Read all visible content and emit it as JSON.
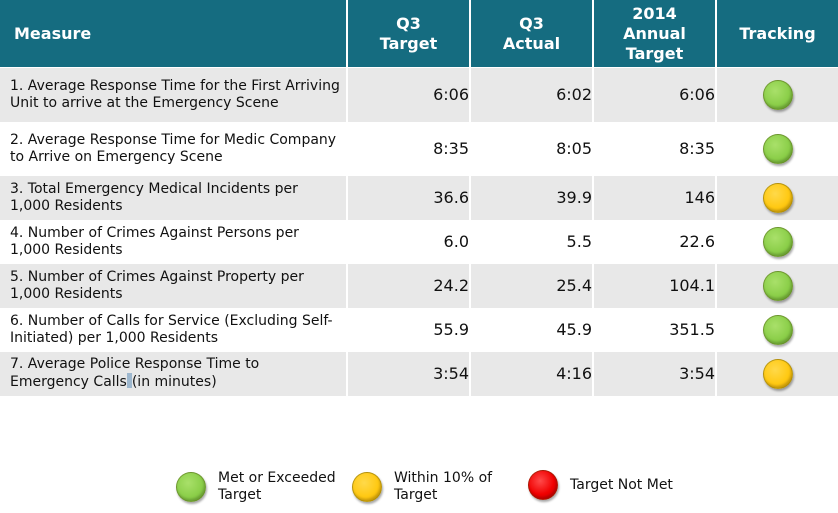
{
  "table": {
    "headers": {
      "measure": "Measure",
      "q3_target_line1": "Q3",
      "q3_target_line2": "Target",
      "q3_actual_line1": "Q3",
      "q3_actual_line2": "Actual",
      "annual_line1": "2014",
      "annual_line2": "Annual",
      "annual_line3": "Target",
      "tracking": "Tracking"
    },
    "rows": [
      {
        "measure": "1. Average Response Time for the First Arriving Unit to arrive at the Emergency Scene",
        "q3_target": "6:06",
        "q3_actual": "6:02",
        "annual_target": "6:06",
        "tracking": "green"
      },
      {
        "measure": "2. Average Response Time for Medic Company to Arrive on Emergency Scene",
        "q3_target": "8:35",
        "q3_actual": "8:05",
        "annual_target": "8:35",
        "tracking": "green"
      },
      {
        "measure": "3. Total Emergency Medical Incidents per 1,000 Residents",
        "q3_target": "36.6",
        "q3_actual": "39.9",
        "annual_target": "146",
        "tracking": "yellow"
      },
      {
        "measure": "4. Number of Crimes Against Persons per 1,000 Residents",
        "q3_target": "6.0",
        "q3_actual": "5.5",
        "annual_target": "22.6",
        "tracking": "green"
      },
      {
        "measure": "5. Number of Crimes Against Property per 1,000 Residents",
        "q3_target": "24.2",
        "q3_actual": "25.4",
        "annual_target": "104.1",
        "tracking": "green"
      },
      {
        "measure": "6. Number of Calls for Service (Excluding Self-Initiated) per 1,000 Residents",
        "q3_target": "55.9",
        "q3_actual": "45.9",
        "annual_target": "351.5",
        "tracking": "green"
      },
      {
        "measure_part1": "7. Average Police Response Time to Emergency Calls",
        "measure_part2": "(in minutes)",
        "q3_target": "3:54",
        "q3_actual": "4:16",
        "annual_target": "3:54",
        "tracking": "yellow"
      }
    ]
  },
  "legend": [
    {
      "status": "green",
      "label": "Met or Exceeded Target",
      "color": "#8CCF4A"
    },
    {
      "status": "yellow",
      "label": "Within 10% of Target",
      "color": "#FFC913"
    },
    {
      "status": "red",
      "label": "Target Not Met",
      "color": "#F00000"
    }
  ],
  "colors": {
    "header_bg": "#156C80",
    "row_shade": "#E8E8E8",
    "green": "#8CCF4A",
    "yellow": "#FFC913",
    "red": "#F00000"
  }
}
